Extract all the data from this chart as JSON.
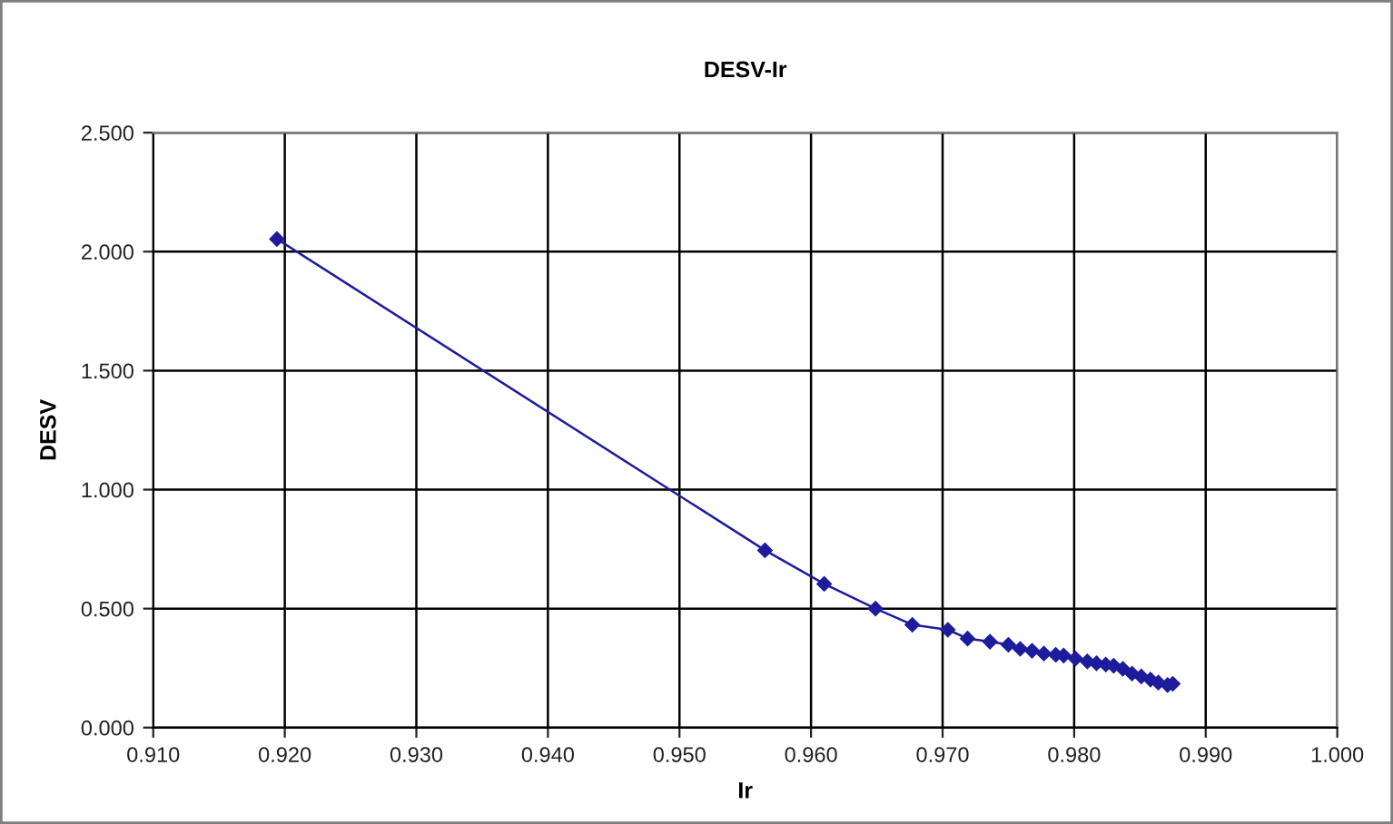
{
  "chart_data": {
    "type": "line",
    "title": "DESV-Ir",
    "xlabel": "Ir",
    "ylabel": "DESV",
    "x": [
      0.9194,
      0.9565,
      0.961,
      0.9649,
      0.9677,
      0.9704,
      0.9719,
      0.9736,
      0.975,
      0.9759,
      0.9768,
      0.9777,
      0.9786,
      0.9792,
      0.9801,
      0.981,
      0.9817,
      0.9824,
      0.983,
      0.9837,
      0.9844,
      0.9851,
      0.9858,
      0.9864,
      0.9871,
      0.9875
    ],
    "series": [
      {
        "color": "#1c1c9c",
        "values": [
          2.053,
          0.745,
          0.604,
          0.5,
          0.432,
          0.411,
          0.374,
          0.361,
          0.348,
          0.331,
          0.323,
          0.311,
          0.306,
          0.303,
          0.29,
          0.278,
          0.27,
          0.265,
          0.26,
          0.247,
          0.227,
          0.215,
          0.202,
          0.189,
          0.179,
          0.184
        ]
      }
    ],
    "xlim": [
      0.91,
      1.0
    ],
    "xticks": [
      {
        "value": 0.91,
        "label": "0.910"
      },
      {
        "value": 0.92,
        "label": "0.920"
      },
      {
        "value": 0.93,
        "label": "0.930"
      },
      {
        "value": 0.94,
        "label": "0.940"
      },
      {
        "value": 0.95,
        "label": "0.950"
      },
      {
        "value": 0.96,
        "label": "0.960"
      },
      {
        "value": 0.97,
        "label": "0.970"
      },
      {
        "value": 0.98,
        "label": "0.980"
      },
      {
        "value": 0.99,
        "label": "0.990"
      },
      {
        "value": 1.0,
        "label": "1.000"
      }
    ],
    "ylim": [
      0,
      2.5
    ],
    "yticks": [
      {
        "value": 0,
        "label": "0.000"
      },
      {
        "value": 0.5,
        "label": "0.500"
      },
      {
        "value": 1.0,
        "label": "1.000"
      },
      {
        "value": 1.5,
        "label": "1.500"
      },
      {
        "value": 2.0,
        "label": "2.000"
      },
      {
        "value": 2.5,
        "label": "2.500"
      }
    ],
    "grid": true,
    "legend": false,
    "marker": "diamond",
    "line_style": "solid"
  }
}
